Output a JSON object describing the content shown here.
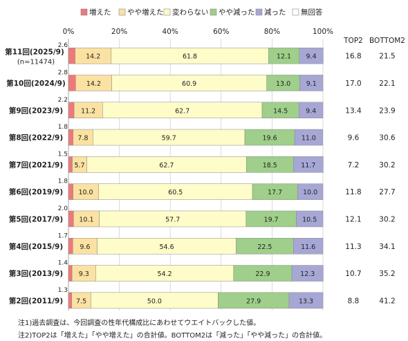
{
  "chart_data": {
    "type": "bar",
    "orientation": "horizontal",
    "stacked": "percent",
    "legend_position": "top",
    "xlim": [
      0,
      100
    ],
    "x_ticks": [
      "0%",
      "20%",
      "40%",
      "60%",
      "80%",
      "100%"
    ],
    "categories": [
      "第11回(2025/9)",
      "第10回(2024/9)",
      "第9回(2023/9)",
      "第8回(2022/9)",
      "第7回(2021/9)",
      "第6回(2019/9)",
      "第5回(2017/9)",
      "第4回(2015/9)",
      "第3回(2013/9)",
      "第2回(2011/9)"
    ],
    "category_sublabel": "(n=11474)",
    "series": [
      {
        "name": "増えた",
        "color": "#f07878",
        "values": [
          2.6,
          2.8,
          2.2,
          1.8,
          1.5,
          1.8,
          2.0,
          1.7,
          1.4,
          1.3
        ]
      },
      {
        "name": "やや増えた",
        "color": "#fbe2a2",
        "values": [
          14.2,
          14.2,
          11.2,
          7.8,
          5.7,
          10.0,
          10.1,
          9.6,
          9.3,
          7.5
        ]
      },
      {
        "name": "変わらない",
        "color": "#fefcc8",
        "values": [
          61.8,
          60.9,
          62.7,
          59.7,
          62.7,
          60.5,
          57.7,
          54.6,
          54.2,
          50.0
        ]
      },
      {
        "name": "やや減った",
        "color": "#9fcf8a",
        "values": [
          12.1,
          13.0,
          14.5,
          19.6,
          18.5,
          17.7,
          19.7,
          22.5,
          22.9,
          27.9
        ]
      },
      {
        "name": "減った",
        "color": "#a7a7d6",
        "values": [
          9.4,
          9.1,
          9.4,
          11.0,
          11.7,
          10.0,
          10.5,
          11.6,
          12.3,
          13.3
        ]
      },
      {
        "name": "無回答",
        "color": "#ffffff",
        "values": [
          0,
          0,
          0,
          0,
          0,
          0,
          0,
          0,
          0,
          0
        ]
      }
    ],
    "summary_columns": [
      {
        "header": "TOP2",
        "values": [
          "16.8",
          "17.0",
          "13.4",
          "9.6",
          "7.2",
          "11.8",
          "12.1",
          "11.3",
          "10.7",
          "8.8"
        ]
      },
      {
        "header": "BOTTOM2",
        "values": [
          "21.5",
          "22.1",
          "23.9",
          "30.6",
          "30.2",
          "27.7",
          "30.2",
          "34.1",
          "35.2",
          "41.2"
        ]
      }
    ],
    "notes": [
      "注1)過去調査は、今回調査の性年代構成比にあわせてウエイトバックした値。",
      "注2)TOP2は「増えた」「やや増えた」の合計値。BOTTOM2は「減った」「やや減った」の合計値。"
    ]
  }
}
